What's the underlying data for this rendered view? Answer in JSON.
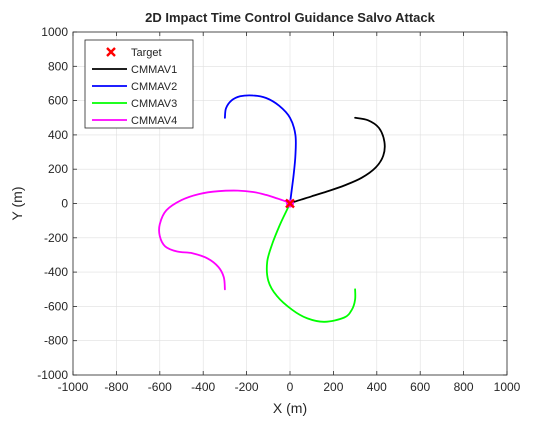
{
  "chart_data": {
    "type": "line",
    "title": "2D Impact Time Control Guidance Salvo Attack",
    "xlabel": "X (m)",
    "ylabel": "Y (m)",
    "xlim": [
      -1000,
      1000
    ],
    "ylim": [
      -1000,
      1000
    ],
    "xticks": [
      "-1000",
      "-800",
      "-600",
      "-400",
      "-200",
      "0",
      "200",
      "400",
      "600",
      "800",
      "1000"
    ],
    "yticks": [
      "-1000",
      "-800",
      "-600",
      "-400",
      "-200",
      "0",
      "200",
      "400",
      "600",
      "800",
      "1000"
    ],
    "grid": true,
    "legend_position": "top-left",
    "target": {
      "name": "Target",
      "x": 0,
      "y": 0,
      "color": "#ff0000"
    },
    "series": [
      {
        "name": "CMMAV1",
        "color": "#000000",
        "x": [
          300,
          360,
          410,
          435,
          430,
          395,
          330,
          250,
          170,
          100,
          50,
          20,
          5,
          0
        ],
        "y": [
          500,
          485,
          440,
          360,
          280,
          210,
          150,
          105,
          70,
          42,
          22,
          10,
          3,
          0
        ]
      },
      {
        "name": "CMMAV2",
        "color": "#0000ff",
        "x": [
          -300,
          -295,
          -270,
          -230,
          -170,
          -110,
          -50,
          0,
          25,
          25,
          15,
          5,
          0
        ],
        "y": [
          500,
          555,
          600,
          625,
          630,
          615,
          570,
          500,
          400,
          280,
          150,
          50,
          0
        ]
      },
      {
        "name": "CMMAV3",
        "color": "#00ff00",
        "x": [
          300,
          300,
          285,
          250,
          160,
          80,
          10,
          -60,
          -100,
          -105,
          -80,
          -45,
          -15,
          0
        ],
        "y": [
          -500,
          -560,
          -620,
          -665,
          -690,
          -670,
          -620,
          -540,
          -450,
          -340,
          -230,
          -120,
          -40,
          0
        ]
      },
      {
        "name": "CMMAV4",
        "color": "#ff00ff",
        "x": [
          -300,
          -305,
          -330,
          -380,
          -450,
          -520,
          -575,
          -600,
          -600,
          -570,
          -500,
          -420,
          -330,
          -240,
          -170,
          -110,
          -60,
          -20,
          0
        ],
        "y": [
          -500,
          -430,
          -370,
          -320,
          -290,
          -280,
          -250,
          -190,
          -120,
          -40,
          20,
          55,
          72,
          75,
          67,
          50,
          30,
          12,
          0
        ]
      }
    ]
  }
}
